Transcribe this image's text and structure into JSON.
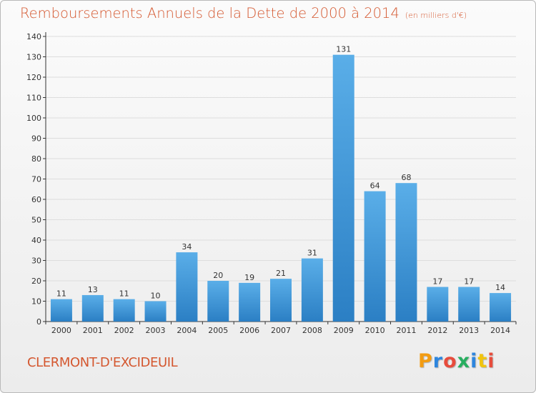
{
  "title": "Remboursements Annuels de la Dette de 2000 à 2014",
  "title_unit": "(en milliers d'€)",
  "commune": "CLERMONT-D'EXCIDEUIL",
  "logo": {
    "letters": [
      "P",
      "r",
      "o",
      "x",
      "i",
      "t",
      "i"
    ],
    "colors": [
      "#f39c12",
      "#2e86de",
      "#e74c3c",
      "#27ae60",
      "#2e86de",
      "#f1c40f",
      "#e74c3c"
    ]
  },
  "colors": {
    "title": "#d4572f",
    "bar_light": "#5aaee8",
    "bar_dark": "#2b7fc4",
    "axis": "#333333",
    "grid": "#dddddd"
  },
  "chart_data": {
    "type": "bar",
    "categories": [
      "2000",
      "2001",
      "2002",
      "2003",
      "2004",
      "2005",
      "2006",
      "2007",
      "2008",
      "2009",
      "2010",
      "2011",
      "2012",
      "2013",
      "2014"
    ],
    "values": [
      11,
      13,
      11,
      10,
      34,
      20,
      19,
      21,
      31,
      131,
      64,
      68,
      17,
      17,
      14
    ],
    "data_labels": [
      "11",
      "13",
      "11",
      "10",
      "34",
      "20",
      "19",
      "21",
      "31",
      "131",
      "64",
      "68",
      "17",
      "17",
      "14"
    ],
    "ylim": [
      0,
      140
    ],
    "yticks": [
      "0",
      "10",
      "20",
      "30",
      "40",
      "50",
      "60",
      "70",
      "80",
      "90",
      "100",
      "110",
      "120",
      "130",
      "140"
    ],
    "grid": true
  }
}
